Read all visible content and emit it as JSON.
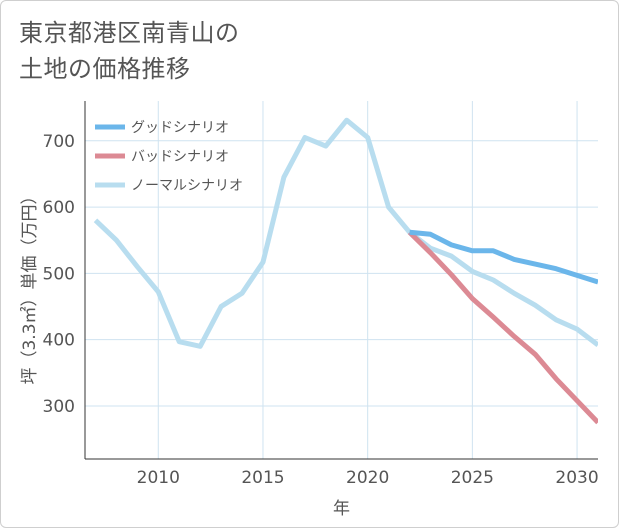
{
  "chart_data": {
    "type": "line",
    "title": [
      "東京都港区南青山の",
      "土地の価格推移"
    ],
    "xlabel": "年",
    "ylabel": "坪（3.3㎡）単価（万円）",
    "xlim": [
      2006.5,
      2031
    ],
    "ylim": [
      220,
      760
    ],
    "xticks": [
      2010,
      2015,
      2020,
      2025,
      2030
    ],
    "yticks": [
      300,
      400,
      500,
      600,
      700
    ],
    "grid": true,
    "legend_position": "top-left",
    "series": [
      {
        "name": "グッドシナリオ",
        "color": "#6bb6ea",
        "x": [
          2022,
          2023,
          2024,
          2025,
          2026,
          2027,
          2028,
          2029,
          2030,
          2031
        ],
        "y": [
          562,
          559,
          543,
          534,
          534,
          521,
          514,
          507,
          497,
          487
        ]
      },
      {
        "name": "バッドシナリオ",
        "color": "#dc8a94",
        "x": [
          2022,
          2023,
          2024,
          2025,
          2026,
          2027,
          2028,
          2029,
          2030,
          2031
        ],
        "y": [
          562,
          531,
          498,
          462,
          434,
          405,
          378,
          341,
          308,
          275
        ]
      },
      {
        "name": "ノーマルシナリオ",
        "color": "#b8ddef",
        "x": [
          2007,
          2008,
          2009,
          2010,
          2011,
          2012,
          2013,
          2014,
          2015,
          2016,
          2017,
          2018,
          2019,
          2020,
          2021,
          2022,
          2023,
          2024,
          2025,
          2026,
          2027,
          2028,
          2029,
          2030,
          2031
        ],
        "y": [
          580,
          550,
          510,
          472,
          397,
          390,
          450,
          470,
          517,
          645,
          705,
          692,
          731,
          705,
          600,
          562,
          538,
          526,
          503,
          490,
          470,
          452,
          430,
          416,
          392
        ]
      }
    ]
  }
}
